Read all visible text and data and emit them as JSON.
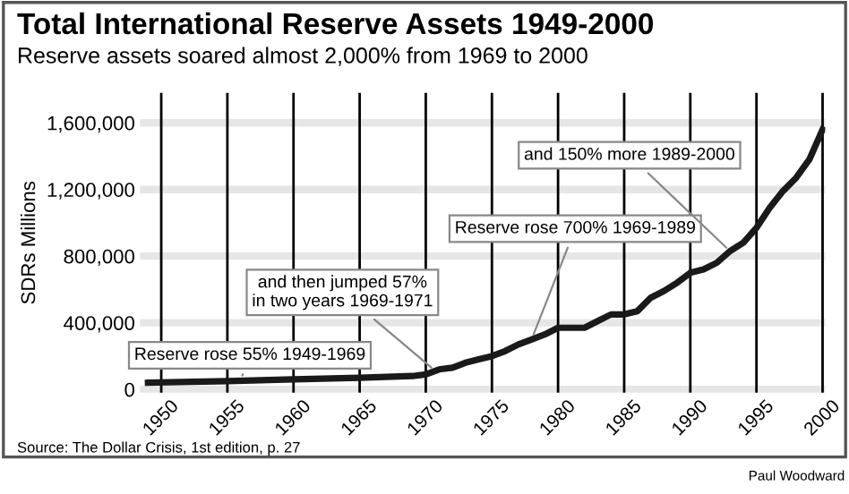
{
  "chart_data": {
    "type": "line",
    "title": "Total International Reserve Assets 1949-2000",
    "subtitle": "Reserve assets soared almost 2,000% from 1969 to 2000",
    "ylabel": "SDRs Millions",
    "x": [
      1949,
      1955,
      1960,
      1965,
      1969,
      1970,
      1971,
      1972,
      1973,
      1974,
      1975,
      1976,
      1977,
      1978,
      1979,
      1980,
      1981,
      1982,
      1983,
      1984,
      1985,
      1986,
      1987,
      1988,
      1989,
      1990,
      1991,
      1992,
      1993,
      1994,
      1995,
      1996,
      1997,
      1998,
      1999,
      2000
    ],
    "series": [
      {
        "color": "#1a1a1a",
        "values": [
          40000,
          50000,
          60000,
          70000,
          80000,
          90000,
          120000,
          130000,
          160000,
          180000,
          200000,
          230000,
          270000,
          300000,
          330000,
          370000,
          370000,
          370000,
          410000,
          450000,
          450000,
          470000,
          550000,
          590000,
          640000,
          700000,
          720000,
          760000,
          830000,
          880000,
          970000,
          1090000,
          1190000,
          1270000,
          1380000,
          1560000
        ]
      }
    ],
    "xlim": [
      1948.4,
      2000.2
    ],
    "xticks": [
      1950,
      1955,
      1960,
      1965,
      1970,
      1975,
      1980,
      1985,
      1990,
      1995,
      2000
    ],
    "ylim": [
      -20000,
      1780000
    ],
    "yticks": [
      {
        "value": 0,
        "label": "0"
      },
      {
        "value": 400000,
        "label": "400,000"
      },
      {
        "value": 800000,
        "label": "800,000"
      },
      {
        "value": 1200000,
        "label": "1,200,000"
      },
      {
        "value": 1600000,
        "label": "1,600,000"
      }
    ],
    "grid": true,
    "legend": false,
    "marker": "none",
    "line_style": "solid",
    "annotations": [
      {
        "text": "Reserve rose 55% 1949-1969",
        "x": 1956,
        "y": 55000
      },
      {
        "text": "and then jumped 57%\nin two years 1969-1971",
        "x": 1970.7,
        "y": 112000
      },
      {
        "text": "Reserve rose 700% 1969-1989",
        "x": 1978,
        "y": 300000
      },
      {
        "text": "and 150% more 1989-2000",
        "x": 1993,
        "y": 830000
      },
      "Source: The Dollar Crisis, 1st edition, p. 27",
      "Paul Woodward"
    ]
  }
}
